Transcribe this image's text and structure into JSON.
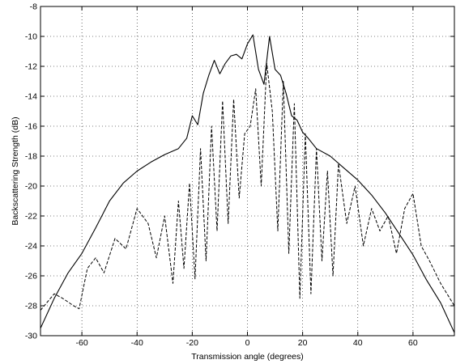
{
  "chart_data": {
    "type": "line",
    "title": "",
    "xlabel": "Transmission angle (degrees)",
    "ylabel": "Backscattering Strength (dB)",
    "xlim": [
      -75,
      75
    ],
    "ylim": [
      -30,
      -8
    ],
    "x_ticks": [
      -60,
      -40,
      -20,
      0,
      20,
      40,
      60
    ],
    "y_ticks": [
      -30,
      -28,
      -26,
      -24,
      -22,
      -20,
      -18,
      -16,
      -14,
      -12,
      -10,
      -8
    ],
    "x_tick_labels": [
      "-60",
      "-40",
      "-20",
      "0",
      "20",
      "40",
      "60"
    ],
    "y_tick_labels": [
      "-30",
      "-28",
      "-26",
      "-24",
      "-22",
      "-20",
      "-18",
      "-16",
      "-14",
      "-12",
      "-10",
      "-8"
    ],
    "grid": true,
    "legend": "none",
    "series": [
      {
        "style": "solid",
        "color": "#000000",
        "x": [
          -75,
          -70,
          -65,
          -60,
          -55,
          -50,
          -45,
          -40,
          -35,
          -30,
          -25,
          -22,
          -20,
          -18,
          -16,
          -14,
          -12,
          -10,
          -8,
          -6,
          -4,
          -2,
          0,
          2,
          4,
          6,
          8,
          10,
          12,
          14,
          16,
          18,
          20,
          22,
          25,
          30,
          35,
          40,
          45,
          50,
          55,
          60,
          65,
          70,
          75
        ],
        "y": [
          -29.5,
          -27.5,
          -25.8,
          -24.5,
          -22.8,
          -21.0,
          -19.8,
          -19.0,
          -18.4,
          -17.9,
          -17.5,
          -16.8,
          -15.3,
          -15.9,
          -13.8,
          -12.6,
          -11.6,
          -12.5,
          -11.8,
          -11.3,
          -11.2,
          -11.5,
          -10.5,
          -9.9,
          -12.2,
          -13.2,
          -10.0,
          -12.2,
          -12.6,
          -13.8,
          -15.3,
          -15.6,
          -16.4,
          -16.8,
          -17.5,
          -18.0,
          -18.8,
          -19.6,
          -20.6,
          -21.8,
          -23.2,
          -24.6,
          -26.3,
          -27.8,
          -29.8
        ]
      },
      {
        "style": "dashed",
        "color": "#000000",
        "x": [
          -75,
          -70,
          -67,
          -63,
          -61,
          -58,
          -55,
          -52,
          -48,
          -44,
          -40,
          -36,
          -33,
          -30,
          -27,
          -25,
          -23,
          -21,
          -19,
          -17,
          -15,
          -13,
          -11,
          -9,
          -7,
          -5,
          -3,
          -1,
          1,
          3,
          5,
          7,
          9,
          11,
          13,
          15,
          17,
          19,
          21,
          23,
          25,
          27,
          29,
          31,
          33,
          36,
          39,
          42,
          45,
          48,
          51,
          54,
          57,
          60,
          63,
          66,
          70,
          75
        ],
        "y": [
          -28.3,
          -27.2,
          -27.5,
          -28.0,
          -28.2,
          -25.5,
          -24.8,
          -25.8,
          -23.5,
          -24.2,
          -21.5,
          -22.5,
          -24.8,
          -22.0,
          -26.5,
          -21.0,
          -25.5,
          -19.8,
          -26.2,
          -17.5,
          -25.0,
          -16.0,
          -23.0,
          -14.3,
          -22.5,
          -14.2,
          -20.8,
          -16.5,
          -16.0,
          -13.5,
          -20.0,
          -11.8,
          -15.0,
          -23.0,
          -13.0,
          -24.5,
          -14.5,
          -27.5,
          -16.5,
          -27.2,
          -17.5,
          -25.0,
          -19.0,
          -26.0,
          -18.5,
          -22.5,
          -20.0,
          -24.0,
          -21.5,
          -23.0,
          -22.0,
          -24.5,
          -21.5,
          -20.5,
          -24.0,
          -25.0,
          -26.5,
          -28.0
        ]
      }
    ]
  }
}
